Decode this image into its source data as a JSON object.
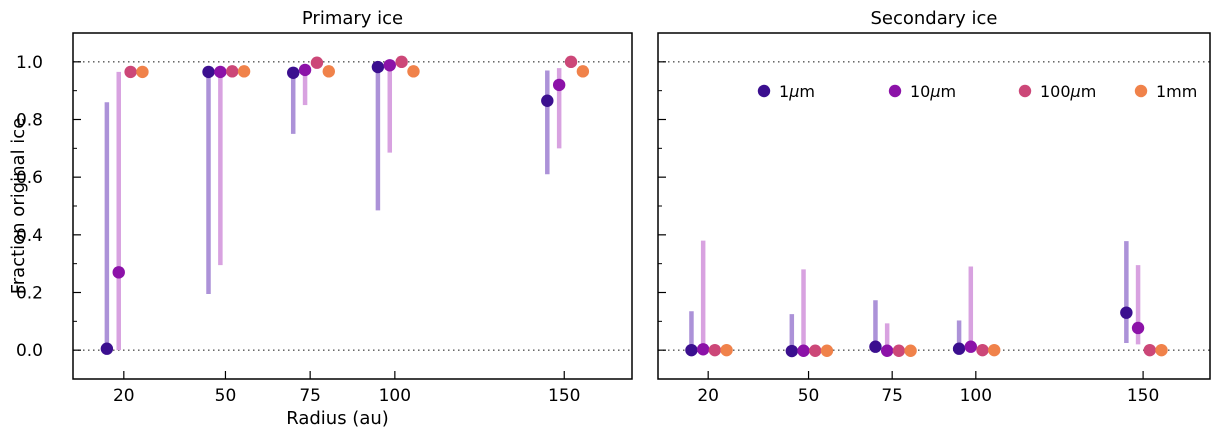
{
  "chart_data": {
    "type": "scatter",
    "ylabel": "Fraction original ice",
    "xlabel": "Radius (au)",
    "ylim": [
      -0.1,
      1.1
    ],
    "xlim": [
      5,
      170
    ],
    "yticks": [
      0.0,
      0.2,
      0.4,
      0.6,
      0.8,
      1.0
    ],
    "ytick_labels": [
      "0.0",
      "0.2",
      "0.4",
      "0.6",
      "0.8",
      "1.0"
    ],
    "xticks": [
      20,
      50,
      75,
      100,
      150
    ],
    "xtick_labels": [
      "20",
      "50",
      "75",
      "100",
      "150"
    ],
    "reference_lines": [
      0.0,
      1.0
    ],
    "legend": {
      "placement": "top-right",
      "entries": [
        {
          "label": "1",
          "unit": "μm",
          "color": "#3b0f8f"
        },
        {
          "label": "10",
          "unit": "μm",
          "color": "#8c12a8"
        },
        {
          "label": "100",
          "unit": "μm",
          "color": "#cc4778"
        },
        {
          "label": "1mm",
          "unit": "",
          "color": "#f0824a"
        }
      ]
    },
    "bar_colors": [
      "#ac92d8",
      "#d8a2e0"
    ],
    "offsets": [
      -5,
      -1.5,
      2,
      5.5
    ],
    "panels": [
      {
        "title": "Primary ice",
        "radii": [
          20,
          50,
          75,
          100,
          150
        ],
        "points": [
          [
            0.005,
            0.27,
            0.965,
            0.965
          ],
          [
            0.965,
            0.965,
            0.967,
            0.967
          ],
          [
            0.962,
            0.972,
            0.997,
            0.967
          ],
          [
            0.982,
            0.988,
            1.0,
            0.967
          ],
          [
            0.865,
            0.92,
            1.0,
            0.967
          ]
        ],
        "ranges": [
          [
            [
              0.005,
              0.86
            ],
            [
              0.0,
              0.965
            ]
          ],
          [
            [
              0.195,
              0.965
            ],
            [
              0.295,
              0.965
            ]
          ],
          [
            [
              0.75,
              0.962
            ],
            [
              0.85,
              0.972
            ]
          ],
          [
            [
              0.485,
              0.982
            ],
            [
              0.685,
              0.988
            ]
          ],
          [
            [
              0.61,
              0.97
            ],
            [
              0.7,
              0.978
            ]
          ]
        ]
      },
      {
        "title": "Secondary ice",
        "radii": [
          20,
          50,
          75,
          100,
          150
        ],
        "points": [
          [
            0.0,
            0.003,
            0.0,
            0.0
          ],
          [
            -0.003,
            -0.002,
            -0.002,
            -0.002
          ],
          [
            0.012,
            -0.002,
            -0.002,
            -0.002
          ],
          [
            0.005,
            0.012,
            0.0,
            0.0
          ],
          [
            0.13,
            0.077,
            0.0,
            0.0
          ]
        ],
        "ranges": [
          [
            [
              0.0,
              0.135
            ],
            [
              0.003,
              0.38
            ]
          ],
          [
            [
              -0.003,
              0.125
            ],
            [
              -0.002,
              0.28
            ]
          ],
          [
            [
              0.012,
              0.173
            ],
            [
              -0.002,
              0.093
            ]
          ],
          [
            [
              0.005,
              0.103
            ],
            [
              0.012,
              0.29
            ]
          ],
          [
            [
              0.025,
              0.378
            ],
            [
              0.02,
              0.295
            ]
          ]
        ]
      }
    ]
  }
}
